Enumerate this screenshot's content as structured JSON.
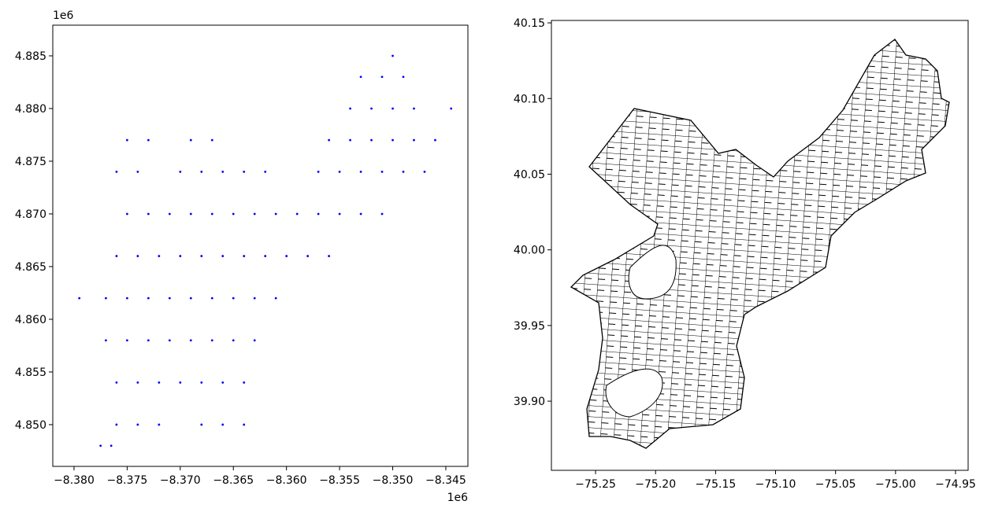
{
  "chart_data": [
    {
      "type": "scatter",
      "color": "#0000ff",
      "xlim": [
        -8.382,
        -8.34292
      ],
      "ylim": [
        4.84604,
        4.88791
      ],
      "offset_text_x": "1e6",
      "offset_text_y": "1e6",
      "xticks": [
        {
          "value": -8.38,
          "label": "−8.380"
        },
        {
          "value": -8.375,
          "label": "−8.375"
        },
        {
          "value": -8.37,
          "label": "−8.370"
        },
        {
          "value": -8.365,
          "label": "−8.365"
        },
        {
          "value": -8.36,
          "label": "−8.360"
        },
        {
          "value": -8.355,
          "label": "−8.355"
        },
        {
          "value": -8.35,
          "label": "−8.350"
        },
        {
          "value": -8.345,
          "label": "−8.345"
        }
      ],
      "yticks": [
        {
          "value": 4.85,
          "label": "4.850"
        },
        4.855,
        {
          "value": 4.86,
          "label": "4.860"
        },
        4.865,
        {
          "value": 4.87,
          "label": "4.870"
        },
        4.875,
        {
          "value": 4.88,
          "label": "4.880"
        },
        4.885
      ],
      "x": [
        -8.3795,
        -8.377,
        -8.375,
        -8.373,
        -8.371,
        -8.369,
        -8.367,
        -8.365,
        -8.363,
        -8.361,
        -8.377,
        -8.375,
        -8.373,
        -8.371,
        -8.369,
        -8.367,
        -8.365,
        -8.363,
        -8.376,
        -8.374,
        -8.372,
        -8.37,
        -8.368,
        -8.366,
        -8.364,
        -8.376,
        -8.374,
        -8.372,
        -8.368,
        -8.366,
        -8.364,
        -8.3775,
        -8.3765,
        -8.376,
        -8.374,
        -8.372,
        -8.37,
        -8.368,
        -8.366,
        -8.364,
        -8.362,
        -8.36,
        -8.358,
        -8.356,
        -8.375,
        -8.373,
        -8.371,
        -8.369,
        -8.367,
        -8.365,
        -8.363,
        -8.361,
        -8.359,
        -8.357,
        -8.355,
        -8.353,
        -8.351,
        -8.376,
        -8.374,
        -8.37,
        -8.368,
        -8.366,
        -8.364,
        -8.362,
        -8.357,
        -8.355,
        -8.353,
        -8.351,
        -8.349,
        -8.347,
        -8.375,
        -8.373,
        -8.369,
        -8.367,
        -8.356,
        -8.354,
        -8.352,
        -8.35,
        -8.348,
        -8.346,
        -8.354,
        -8.352,
        -8.35,
        -8.348,
        -8.3445,
        -8.353,
        -8.351,
        -8.349,
        -8.35
      ],
      "values": [
        4.862,
        4.862,
        4.862,
        4.862,
        4.862,
        4.862,
        4.862,
        4.862,
        4.862,
        4.862,
        4.858,
        4.858,
        4.858,
        4.858,
        4.858,
        4.858,
        4.858,
        4.858,
        4.854,
        4.854,
        4.854,
        4.854,
        4.854,
        4.854,
        4.854,
        4.85,
        4.85,
        4.85,
        4.85,
        4.85,
        4.85,
        4.848,
        4.848,
        4.866,
        4.866,
        4.866,
        4.866,
        4.866,
        4.866,
        4.866,
        4.866,
        4.866,
        4.866,
        4.866,
        4.87,
        4.87,
        4.87,
        4.87,
        4.87,
        4.87,
        4.87,
        4.87,
        4.87,
        4.87,
        4.87,
        4.87,
        4.87,
        4.874,
        4.874,
        4.874,
        4.874,
        4.874,
        4.874,
        4.874,
        4.874,
        4.874,
        4.874,
        4.874,
        4.874,
        4.874,
        4.877,
        4.877,
        4.877,
        4.877,
        4.877,
        4.877,
        4.877,
        4.877,
        4.877,
        4.877,
        4.88,
        4.88,
        4.88,
        4.88,
        4.88,
        4.883,
        4.883,
        4.883,
        4.885
      ]
    },
    {
      "type": "map",
      "xlim": [
        -75.2868,
        -74.9395
      ],
      "ylim": [
        39.8543,
        40.1516
      ],
      "xticks": [
        {
          "value": -75.25,
          "label": "−75.25"
        },
        {
          "value": -75.2,
          "label": "−75.20"
        },
        {
          "value": -75.15,
          "label": "−75.15"
        },
        {
          "value": -75.1,
          "label": "−75.10"
        },
        {
          "value": -75.05,
          "label": "−75.05"
        },
        {
          "value": -75.0,
          "label": "−75.00"
        },
        {
          "value": -74.95,
          "label": "−74.95"
        }
      ],
      "yticks": [
        {
          "value": 39.9,
          "label": "39.90"
        },
        39.95,
        {
          "value": 40.0,
          "label": "40.00"
        },
        40.05,
        {
          "value": 40.1,
          "label": "40.10"
        },
        40.15
      ]
    }
  ]
}
